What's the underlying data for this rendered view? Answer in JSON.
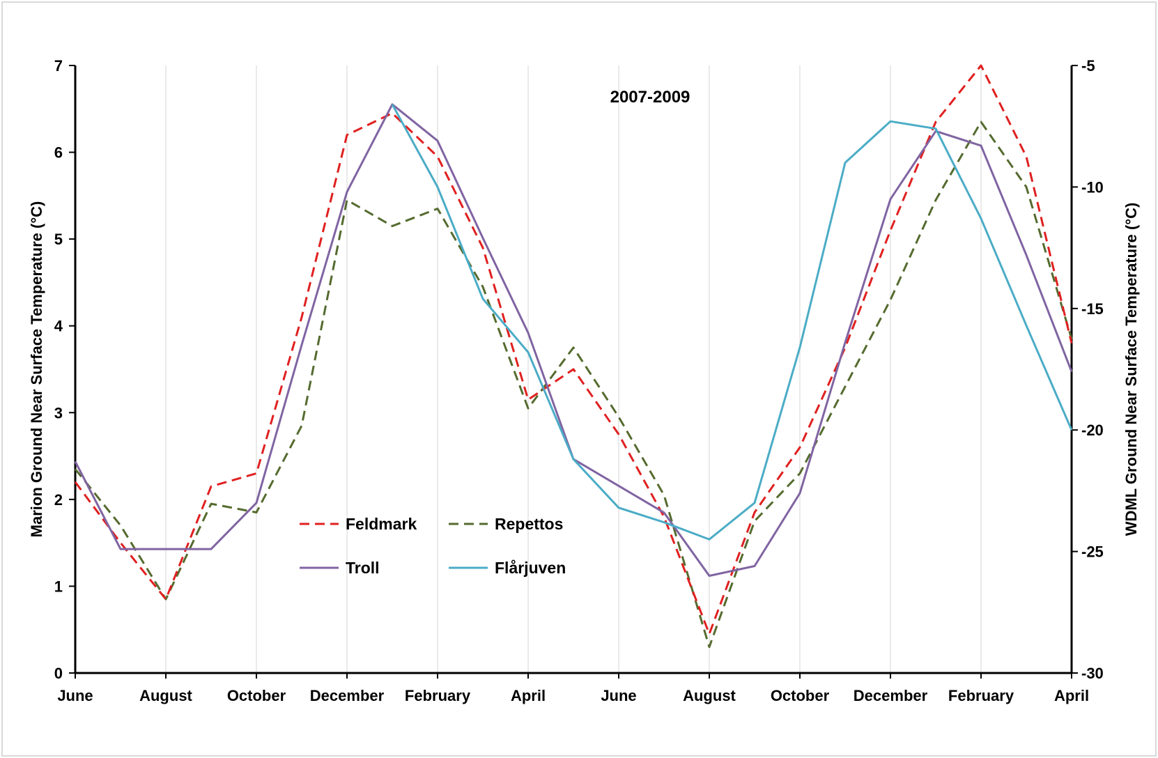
{
  "chart_data": {
    "type": "line",
    "title": "2007-2009",
    "y_left_label": "Marion Ground Near Surface Temperature (°C)",
    "y_right_label": "WDML Ground Near Surface Temperature (°C)",
    "ylim_left": [
      0,
      7
    ],
    "ylim_right": [
      -30,
      -5
    ],
    "y_left_ticks": [
      0,
      1,
      2,
      3,
      4,
      5,
      6,
      7
    ],
    "y_right_ticks": [
      -30,
      -25,
      -20,
      -15,
      -10,
      -5
    ],
    "x_range": [
      0,
      22
    ],
    "x_tick_positions": [
      0,
      2,
      4,
      6,
      8,
      10,
      12,
      14,
      16,
      18,
      20,
      22
    ],
    "x_tick_labels": [
      "June",
      "August",
      "October",
      "December",
      "February",
      "April",
      "June",
      "August",
      "October",
      "December",
      "February",
      "April"
    ],
    "grid": "vertical",
    "legend_placement": "bottom-center",
    "series": [
      {
        "name": "Feldmark",
        "axis": "left",
        "color": "#e02020",
        "dash": "dashed",
        "x": [
          0,
          1,
          2,
          3,
          4,
          5,
          6,
          7,
          8,
          9,
          10,
          11,
          12,
          13,
          14,
          15,
          16,
          17,
          18,
          19,
          20,
          21,
          22
        ],
        "values": [
          2.2,
          1.5,
          0.85,
          2.15,
          2.3,
          4.1,
          6.2,
          6.45,
          5.95,
          4.9,
          3.15,
          3.5,
          2.75,
          1.8,
          0.45,
          1.85,
          2.6,
          3.75,
          5.1,
          6.35,
          7.0,
          5.95,
          3.8
        ]
      },
      {
        "name": "Repettos",
        "axis": "left",
        "color": "#556b2f",
        "dash": "dashed",
        "x": [
          0,
          1,
          2,
          3,
          4,
          5,
          6,
          7,
          8,
          9,
          10,
          11,
          12,
          13,
          14,
          15,
          16,
          17,
          18,
          19,
          20,
          21,
          22
        ],
        "values": [
          2.35,
          1.7,
          0.85,
          1.95,
          1.85,
          2.85,
          5.45,
          5.15,
          5.35,
          4.45,
          3.05,
          3.75,
          2.95,
          2.05,
          0.3,
          1.75,
          2.3,
          3.3,
          4.3,
          5.45,
          6.35,
          5.6,
          3.85
        ]
      },
      {
        "name": "Troll",
        "axis": "right",
        "color": "#8064a2",
        "dash": "solid",
        "x": [
          0,
          1,
          2,
          3,
          4,
          5,
          6,
          7,
          8,
          9,
          10,
          11,
          12,
          13,
          14,
          15,
          16,
          17,
          18,
          19,
          20,
          21,
          22
        ],
        "values": [
          -21.3,
          -24.9,
          -24.9,
          -24.9,
          -23.0,
          -16.5,
          -10.2,
          -6.6,
          -8.1,
          -12.1,
          -16.0,
          -21.2,
          -22.3,
          -23.4,
          -26.0,
          -25.6,
          -22.6,
          -16.4,
          -10.5,
          -7.7,
          -8.3,
          -12.8,
          -17.6
        ]
      },
      {
        "name": "Flårjuven",
        "axis": "right",
        "color": "#4bacc6",
        "dash": "solid",
        "x": [
          7,
          8,
          9,
          10,
          11,
          12,
          13,
          14,
          15,
          16,
          17,
          18,
          19,
          20,
          21,
          22
        ],
        "values": [
          -6.6,
          -10.0,
          -14.6,
          -16.8,
          -21.2,
          -23.2,
          -23.8,
          -24.5,
          -23.0,
          -16.6,
          -9.0,
          -7.3,
          -7.6,
          -11.3,
          -15.7,
          -20.0
        ]
      }
    ]
  }
}
